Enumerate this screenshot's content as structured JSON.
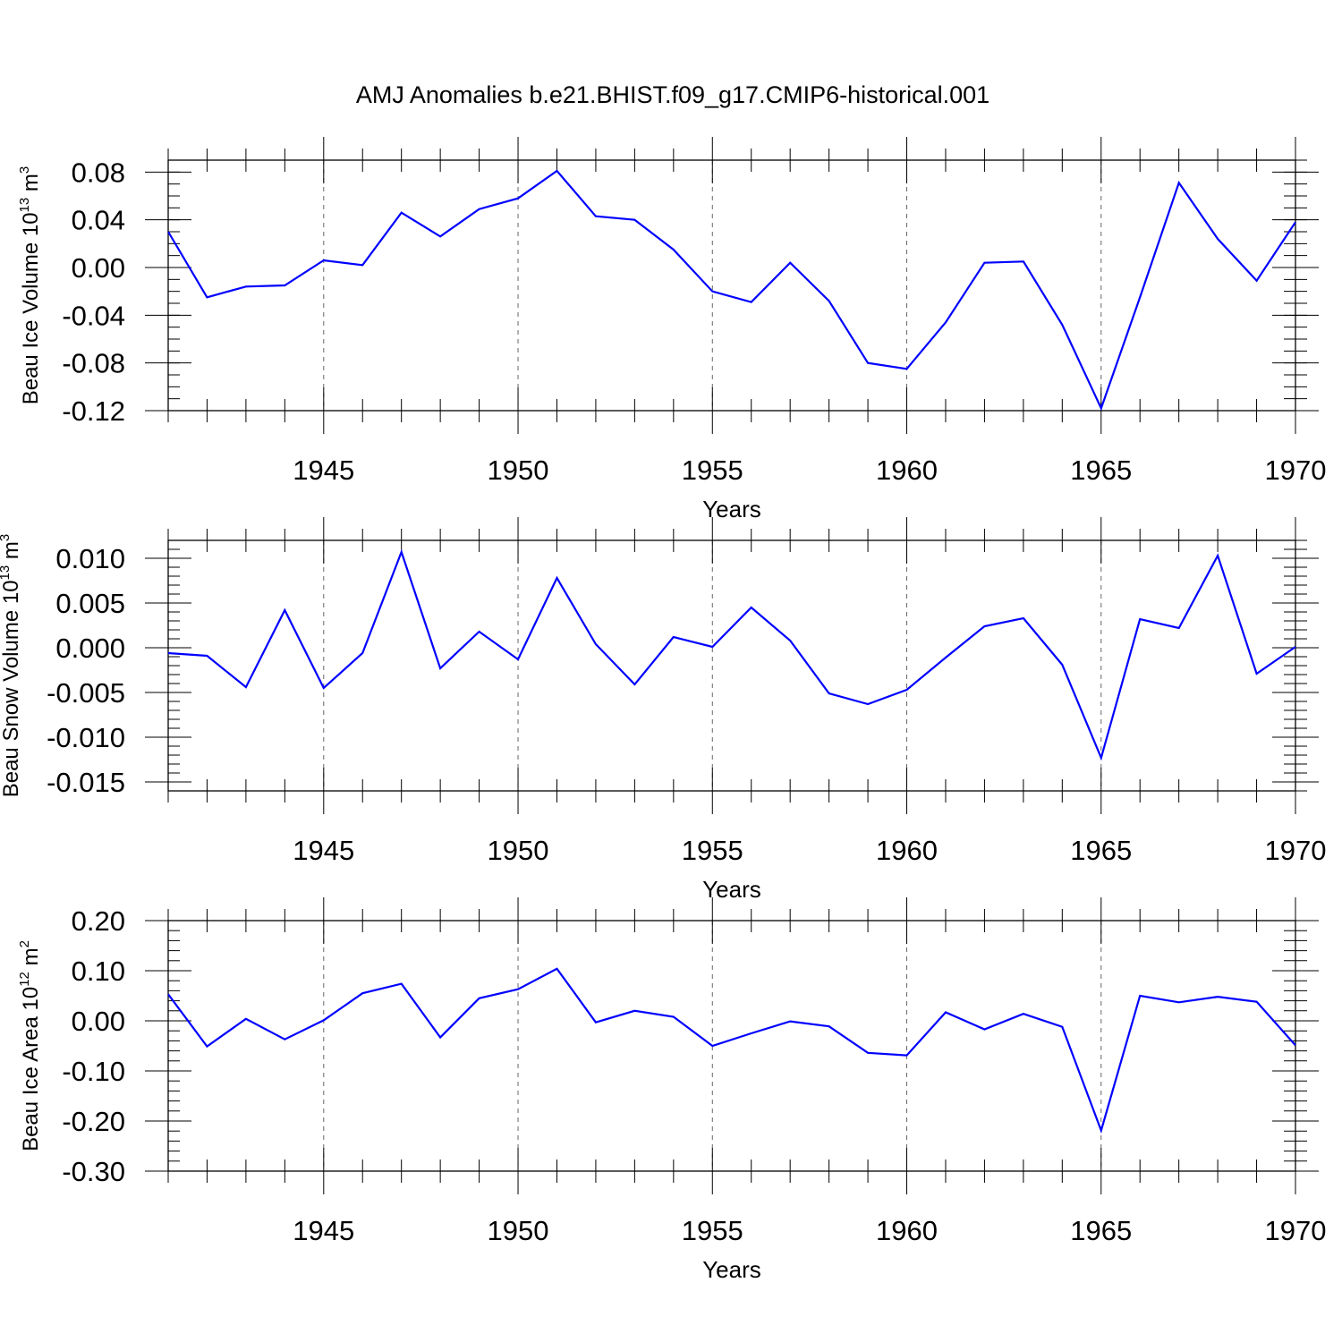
{
  "title": "AMJ Anomalies b.e21.BHIST.f09_g17.CMIP6-historical.001",
  "line_color": "#0000ff",
  "chart_data": [
    {
      "type": "line",
      "title": "",
      "xlabel": "Years",
      "ylabel": {
        "main": "Beau Ice Volume 10",
        "exp": "13",
        "unit": " m",
        "unit_exp": "3"
      },
      "xlim": [
        1941,
        1970
      ],
      "ylim": [
        -0.12,
        0.09
      ],
      "x_ticks": [
        1945,
        1950,
        1955,
        1960,
        1965,
        1970
      ],
      "x_tick_labels": [
        "1945",
        "1950",
        "1955",
        "1960",
        "1965",
        "1970"
      ],
      "y_ticks": [
        0.08,
        0.04,
        0.0,
        -0.04,
        -0.08,
        -0.12
      ],
      "y_tick_labels": [
        "0.08",
        "0.04",
        "0.00",
        "-0.04",
        "-0.08",
        "-0.12"
      ],
      "y_minor_step": 0.01,
      "series": [
        {
          "name": "Beau Ice Volume",
          "x": [
            1941,
            1942,
            1943,
            1944,
            1945,
            1946,
            1947,
            1948,
            1949,
            1950,
            1951,
            1952,
            1953,
            1954,
            1955,
            1956,
            1957,
            1958,
            1959,
            1960,
            1961,
            1962,
            1963,
            1964,
            1965,
            1966,
            1967,
            1968,
            1969,
            1970
          ],
          "values": [
            0.03,
            -0.025,
            -0.016,
            -0.015,
            0.006,
            0.002,
            0.046,
            0.026,
            0.049,
            0.058,
            0.081,
            0.043,
            0.04,
            0.015,
            -0.02,
            -0.029,
            0.004,
            -0.028,
            -0.08,
            -0.085,
            -0.046,
            0.004,
            0.005,
            -0.048,
            -0.118,
            -0.025,
            0.071,
            0.024,
            -0.011,
            0.038
          ]
        }
      ]
    },
    {
      "type": "line",
      "title": "",
      "xlabel": "Years",
      "ylabel": {
        "main": "Beau Snow Volume 10",
        "exp": "13",
        "unit": " m",
        "unit_exp": "3"
      },
      "xlim": [
        1941,
        1970
      ],
      "ylim": [
        -0.016,
        0.012
      ],
      "x_ticks": [
        1945,
        1950,
        1955,
        1960,
        1965,
        1970
      ],
      "x_tick_labels": [
        "1945",
        "1950",
        "1955",
        "1960",
        "1965",
        "1970"
      ],
      "y_ticks": [
        0.01,
        0.005,
        0.0,
        -0.005,
        -0.01,
        -0.015
      ],
      "y_tick_labels": [
        "0.010",
        "0.005",
        "0.000",
        "-0.005",
        "-0.010",
        "-0.015"
      ],
      "y_minor_step": 0.001,
      "series": [
        {
          "name": "Beau Snow Volume",
          "x": [
            1941,
            1942,
            1943,
            1944,
            1945,
            1946,
            1947,
            1948,
            1949,
            1950,
            1951,
            1952,
            1953,
            1954,
            1955,
            1956,
            1957,
            1958,
            1959,
            1960,
            1961,
            1962,
            1963,
            1964,
            1965,
            1966,
            1967,
            1968,
            1969,
            1970
          ],
          "values": [
            -0.0006,
            -0.0009,
            -0.0044,
            0.0042,
            -0.0045,
            -0.0006,
            0.0107,
            -0.0023,
            0.0018,
            -0.0013,
            0.0078,
            0.0004,
            -0.0041,
            0.0012,
            0.0001,
            0.0045,
            0.0008,
            -0.0051,
            -0.0063,
            -0.0047,
            -0.0011,
            0.0024,
            0.0033,
            -0.0019,
            -0.0123,
            0.0032,
            0.0022,
            0.0103,
            -0.0029,
            0.0001
          ]
        }
      ]
    },
    {
      "type": "line",
      "title": "",
      "xlabel": "Years",
      "ylabel": {
        "main": "Beau Ice Area 10",
        "exp": "12",
        "unit": " m",
        "unit_exp": "2"
      },
      "xlim": [
        1941,
        1970
      ],
      "ylim": [
        -0.3,
        0.2
      ],
      "x_ticks": [
        1945,
        1950,
        1955,
        1960,
        1965,
        1970
      ],
      "x_tick_labels": [
        "1945",
        "1950",
        "1955",
        "1960",
        "1965",
        "1970"
      ],
      "y_ticks": [
        0.2,
        0.1,
        0.0,
        -0.1,
        -0.2,
        -0.3
      ],
      "y_tick_labels": [
        "0.20",
        "0.10",
        "0.00",
        "-0.10",
        "-0.20",
        "-0.30"
      ],
      "y_minor_step": 0.02,
      "series": [
        {
          "name": "Beau Ice Area",
          "x": [
            1941,
            1942,
            1943,
            1944,
            1945,
            1946,
            1947,
            1948,
            1949,
            1950,
            1951,
            1952,
            1953,
            1954,
            1955,
            1956,
            1957,
            1958,
            1959,
            1960,
            1961,
            1962,
            1963,
            1964,
            1965,
            1966,
            1967,
            1968,
            1969,
            1970
          ],
          "values": [
            0.053,
            -0.051,
            0.004,
            -0.037,
            0.001,
            0.055,
            0.074,
            -0.033,
            0.045,
            0.063,
            0.104,
            -0.003,
            0.02,
            0.008,
            -0.05,
            -0.025,
            -0.001,
            -0.011,
            -0.064,
            -0.069,
            0.017,
            -0.017,
            0.014,
            -0.012,
            -0.219,
            0.05,
            0.037,
            0.048,
            0.038,
            -0.049
          ]
        }
      ]
    }
  ]
}
